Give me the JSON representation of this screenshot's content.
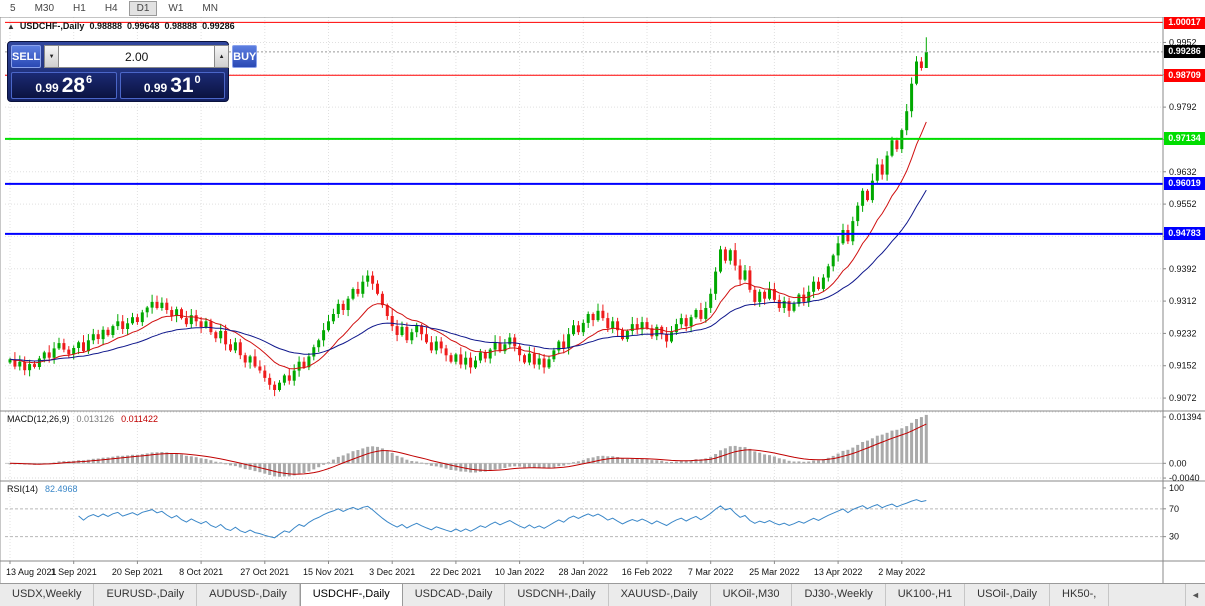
{
  "toolbar": {
    "timeframes": [
      "5",
      "M30",
      "H1",
      "H4",
      "D1",
      "W1",
      "MN"
    ],
    "active": "D1"
  },
  "quote_header": {
    "symbol": "USDCHF-,Daily",
    "open": "0.98888",
    "high": "0.99648",
    "low": "0.98888",
    "close": "0.99286"
  },
  "trade_panel": {
    "collapse_icon": "▲",
    "sell_label": "SELL",
    "buy_label": "BUY",
    "volume": "2.00",
    "spin_down_icon": "▼",
    "spin_up_icon": "▲",
    "sell_price": {
      "big": "0.99",
      "pips": "28",
      "point": "6"
    },
    "buy_price": {
      "big": "0.99",
      "pips": "31",
      "point": "0"
    }
  },
  "chart_data": {
    "type": "candlestick",
    "title": "USDCHF-,Daily",
    "symbol": "USDCHF",
    "timeframe": "Daily",
    "x_labels": [
      "13 Aug 2021",
      "1 Sep 2021",
      "20 Sep 2021",
      "8 Oct 2021",
      "27 Oct 2021",
      "15 Nov 2021",
      "3 Dec 2021",
      "22 Dec 2021",
      "10 Jan 2022",
      "28 Jan 2022",
      "16 Feb 2022",
      "7 Mar 2022",
      "25 Mar 2022",
      "13 Apr 2022",
      "2 May 2022"
    ],
    "candles_per_label": 13,
    "y_ticks": [
      "0.9952",
      "0.9872",
      "0.9792",
      "0.9712",
      "0.9632",
      "0.9552",
      "0.9472",
      "0.9392",
      "0.9312",
      "0.9232",
      "0.9152",
      "0.9072"
    ],
    "price_range": {
      "max": 1.0015,
      "min": 0.904
    },
    "closes": [
      0.9168,
      0.915,
      0.9162,
      0.9141,
      0.9156,
      0.9149,
      0.917,
      0.9185,
      0.9172,
      0.9195,
      0.9208,
      0.9192,
      0.918,
      0.9196,
      0.921,
      0.9188,
      0.9215,
      0.923,
      0.9218,
      0.9241,
      0.9228,
      0.925,
      0.9262,
      0.9243,
      0.9257,
      0.9272,
      0.926,
      0.9284,
      0.9296,
      0.931,
      0.9295,
      0.9308,
      0.929,
      0.9275,
      0.9292,
      0.927,
      0.9255,
      0.9277,
      0.9262,
      0.9248,
      0.9262,
      0.9235,
      0.922,
      0.9238,
      0.9205,
      0.919,
      0.921,
      0.9178,
      0.916,
      0.9175,
      0.915,
      0.914,
      0.9122,
      0.9105,
      0.9092,
      0.911,
      0.9128,
      0.9115,
      0.914,
      0.9162,
      0.9148,
      0.9175,
      0.9198,
      0.9215,
      0.924,
      0.9262,
      0.928,
      0.9305,
      0.929,
      0.9318,
      0.9342,
      0.933,
      0.936,
      0.9375,
      0.9355,
      0.933,
      0.9302,
      0.9275,
      0.925,
      0.9228,
      0.9248,
      0.9215,
      0.9235,
      0.9252,
      0.923,
      0.921,
      0.919,
      0.9212,
      0.9195,
      0.9178,
      0.9162,
      0.918,
      0.9155,
      0.9172,
      0.9148,
      0.9165,
      0.9185,
      0.917,
      0.9192,
      0.921,
      0.9188,
      0.9205,
      0.9222,
      0.92,
      0.9178,
      0.916,
      0.9182,
      0.9155,
      0.917,
      0.9148,
      0.9168,
      0.919,
      0.9212,
      0.9195,
      0.923,
      0.9252,
      0.9235,
      0.9258,
      0.928,
      0.9265,
      0.9288,
      0.927,
      0.9245,
      0.9262,
      0.924,
      0.9218,
      0.9238,
      0.9255,
      0.9242,
      0.926,
      0.9245,
      0.9225,
      0.9248,
      0.923,
      0.9212,
      0.9235,
      0.9255,
      0.927,
      0.925,
      0.9272,
      0.929,
      0.9268,
      0.9295,
      0.933,
      0.9385,
      0.944,
      0.9412,
      0.9438,
      0.94,
      0.9365,
      0.9388,
      0.934,
      0.931,
      0.9335,
      0.9318,
      0.9342,
      0.9315,
      0.9295,
      0.9312,
      0.9288,
      0.9305,
      0.9328,
      0.931,
      0.9335,
      0.936,
      0.9342,
      0.937,
      0.9398,
      0.9425,
      0.9455,
      0.9488,
      0.946,
      0.951,
      0.9548,
      0.9585,
      0.9562,
      0.961,
      0.965,
      0.9625,
      0.9672,
      0.971,
      0.9688,
      0.9735,
      0.9782,
      0.985,
      0.9905,
      0.9889,
      0.99286
    ],
    "last_candle": {
      "open": 0.98888,
      "high": 0.99648,
      "low": 0.98888,
      "close": 0.99286
    },
    "current_price": {
      "label": "0.99286",
      "color": "#000000"
    },
    "hlines": [
      {
        "price": 1.00017,
        "label": "1.00017",
        "color": "#ff0000",
        "width": 1
      },
      {
        "price": 0.98709,
        "label": "0.98709",
        "color": "#ff0000",
        "width": 1
      },
      {
        "price": 0.97134,
        "label": "0.97134",
        "color": "#00dd00",
        "width": 2
      },
      {
        "price": 0.96019,
        "label": "0.96019",
        "color": "#0000ff",
        "width": 2
      },
      {
        "price": 0.94783,
        "label": "0.94783",
        "color": "#0000ff",
        "width": 2
      }
    ],
    "ma_lines": [
      {
        "name": "ma-fast",
        "period": 13,
        "color": "#d01010"
      },
      {
        "name": "ma-slow",
        "period": 34,
        "color": "#10188c"
      }
    ],
    "indicators": {
      "macd": {
        "label": "MACD(12,26,9)",
        "value_main": "0.013126",
        "value_signal": "0.011422",
        "fast": 12,
        "slow": 26,
        "signal": 9,
        "axis_labels": [
          "0.01394",
          "0.00",
          "-0.0040"
        ],
        "range": {
          "max": 0.0142,
          "min": -0.0048
        }
      },
      "rsi": {
        "label": "RSI(14)",
        "value": "82.4968",
        "period": 14,
        "levels": [
          70,
          30
        ],
        "axis_labels": [
          "100",
          "70",
          "30"
        ],
        "range": {
          "max": 110,
          "min": -5
        }
      }
    },
    "colors": {
      "bull": "#00a800",
      "bear": "#ee1c1c",
      "grid": "#e0e0e0",
      "axis_text": "#111111",
      "bid_line": "#999999",
      "macd_hist": "#aaaaaa",
      "macd_signal": "#c00000",
      "rsi_line": "#3a87c8"
    }
  },
  "tabs": {
    "items": [
      "USDX,Weekly",
      "EURUSD-,Daily",
      "AUDUSD-,Daily",
      "USDCHF-,Daily",
      "USDCAD-,Daily",
      "USDCNH-,Daily",
      "XAUUSD-,Daily",
      "UKOil-,M30",
      "DJ30-,Weekly",
      "UK100-,H1",
      "USOil-,Daily",
      "HK50-,"
    ],
    "active_index": 3,
    "scroll_left": "◄"
  }
}
